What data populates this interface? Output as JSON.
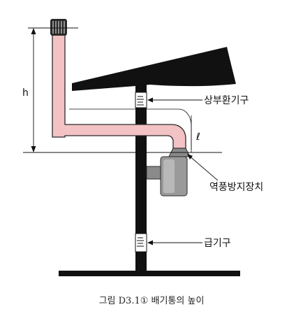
{
  "diagram": {
    "labels": {
      "height": "h",
      "length": "ℓ",
      "upper_vent": "상부환기구",
      "draft_hood": "역풍방지장치",
      "supply_vent": "급기구"
    },
    "caption": "그림 D3.1① 배기통의 높이",
    "colors": {
      "wall": "#111111",
      "roof": "#111111",
      "flue_fill": "#f2c2c4",
      "flue_outline": "#2a2a2a",
      "cap": "#2a2a2a",
      "heater_body": "#9a9a9a",
      "hood": "#8a8a8a",
      "leader_line": "#111111",
      "dimension_line": "#111111"
    }
  }
}
